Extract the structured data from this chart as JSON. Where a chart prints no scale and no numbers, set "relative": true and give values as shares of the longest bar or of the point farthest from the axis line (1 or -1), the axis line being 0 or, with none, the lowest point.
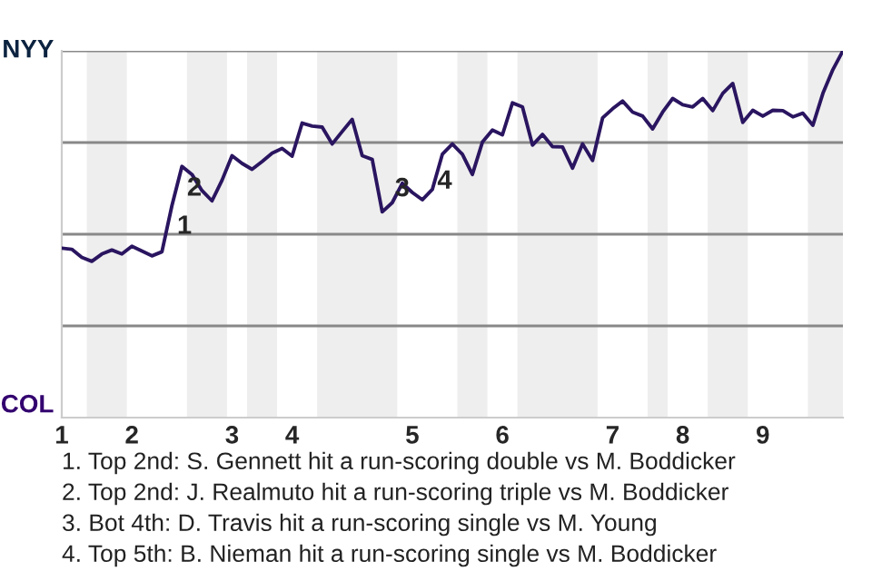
{
  "chart_data": {
    "type": "line",
    "relative": true,
    "categories": [
      "1",
      null,
      null,
      null,
      null,
      null,
      null,
      "2",
      null,
      null,
      null,
      null,
      null,
      null,
      null,
      null,
      null,
      "3",
      null,
      null,
      null,
      null,
      null,
      "4",
      null,
      null,
      null,
      null,
      null,
      null,
      null,
      null,
      null,
      null,
      null,
      "5",
      null,
      null,
      null,
      null,
      null,
      null,
      null,
      null,
      "6",
      null,
      null,
      null,
      null,
      null,
      null,
      null,
      null,
      null,
      null,
      "7",
      null,
      null,
      null,
      null,
      null,
      null,
      "8",
      null,
      null,
      null,
      null,
      null,
      null,
      null,
      "9",
      null,
      null,
      null,
      null,
      null,
      null,
      null,
      null
    ],
    "series": [
      {
        "color": "#2a1560",
        "values": [
          0.462,
          0.459,
          0.437,
          0.426,
          0.446,
          0.457,
          0.446,
          0.467,
          0.454,
          0.441,
          0.452,
          0.578,
          0.685,
          0.663,
          0.619,
          0.591,
          0.647,
          0.714,
          0.693,
          0.677,
          0.698,
          0.721,
          0.734,
          0.713,
          0.803,
          0.795,
          0.792,
          0.746,
          0.78,
          0.813,
          0.714,
          0.704,
          0.561,
          0.586,
          0.639,
          0.614,
          0.594,
          0.622,
          0.718,
          0.746,
          0.718,
          0.663,
          0.751,
          0.784,
          0.771,
          0.858,
          0.847,
          0.743,
          0.772,
          0.739,
          0.738,
          0.68,
          0.746,
          0.701,
          0.817,
          0.842,
          0.863,
          0.833,
          0.822,
          0.787,
          0.833,
          0.87,
          0.853,
          0.847,
          0.87,
          0.837,
          0.884,
          0.911,
          0.805,
          0.838,
          0.822,
          0.838,
          0.837,
          0.82,
          0.83,
          0.797,
          0.884,
          0.949,
          1.0
        ],
        "name": null
      }
    ],
    "line_style": "solid",
    "marker": "none",
    "ref_lines": [
      {
        "axis": "y",
        "value": 0.25,
        "color": "#888888"
      },
      {
        "axis": "y",
        "value": 0.5,
        "color": "#888888"
      },
      {
        "axis": "y",
        "value": 0.75,
        "color": "#888888"
      },
      {
        "axis": "y",
        "value": 1.0,
        "color": "#888888"
      }
    ],
    "annotations": [
      "1",
      "2",
      "3",
      "4",
      "NYY",
      "COL",
      "1. Top 2nd: S. Gennett hit a run-scoring double vs M. Boddicker",
      "2. Top 2nd: J. Realmuto hit a run-scoring triple vs M. Boddicker",
      "3. Bot 4th: D. Travis hit a run-scoring single vs M. Young",
      "4. Top 5th: B. Nieman hit a run-scoring single vs M. Boddicker"
    ]
  }
}
